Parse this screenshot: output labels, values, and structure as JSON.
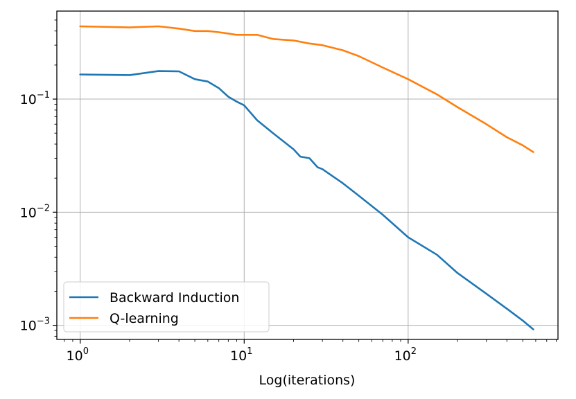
{
  "chart_data": {
    "type": "line",
    "title": "",
    "xlabel": "Log(iterations)",
    "ylabel": "",
    "xscale": "log",
    "yscale": "log",
    "xlim": [
      0.72,
      820
    ],
    "ylim": [
      0.00075,
      0.6
    ],
    "grid": true,
    "legend_position": "lower-left",
    "x_ticks": [
      {
        "base": "10",
        "exp": "0",
        "value": 1
      },
      {
        "base": "10",
        "exp": "1",
        "value": 10
      },
      {
        "base": "10",
        "exp": "2",
        "value": 100
      }
    ],
    "y_ticks": [
      {
        "base": "10",
        "exp": "−1",
        "value": 0.1
      },
      {
        "base": "10",
        "exp": "−2",
        "value": 0.01
      },
      {
        "base": "10",
        "exp": "−3",
        "value": 0.001
      }
    ],
    "series": [
      {
        "name": "Backward Induction",
        "color": "#1f77b4",
        "x": [
          1,
          2,
          3,
          4,
          5,
          6,
          7,
          8,
          9,
          10,
          12,
          15,
          20,
          22,
          25,
          28,
          30,
          40,
          50,
          70,
          100,
          150,
          200,
          300,
          400,
          500,
          580
        ],
        "y": [
          0.165,
          0.163,
          0.177,
          0.176,
          0.15,
          0.143,
          0.125,
          0.105,
          0.095,
          0.088,
          0.065,
          0.05,
          0.036,
          0.031,
          0.03,
          0.025,
          0.024,
          0.018,
          0.014,
          0.0095,
          0.006,
          0.0042,
          0.0029,
          0.0019,
          0.0014,
          0.0011,
          0.00092
        ]
      },
      {
        "name": "Q-learning",
        "color": "#ff7f0e",
        "x": [
          1,
          2,
          3,
          4,
          5,
          6,
          7,
          8,
          9,
          10,
          12,
          15,
          20,
          25,
          30,
          40,
          50,
          70,
          100,
          150,
          200,
          300,
          400,
          500,
          580
        ],
        "y": [
          0.44,
          0.43,
          0.44,
          0.42,
          0.4,
          0.4,
          0.39,
          0.38,
          0.37,
          0.37,
          0.37,
          0.34,
          0.33,
          0.31,
          0.3,
          0.27,
          0.24,
          0.19,
          0.15,
          0.11,
          0.085,
          0.06,
          0.046,
          0.039,
          0.034
        ]
      }
    ]
  }
}
